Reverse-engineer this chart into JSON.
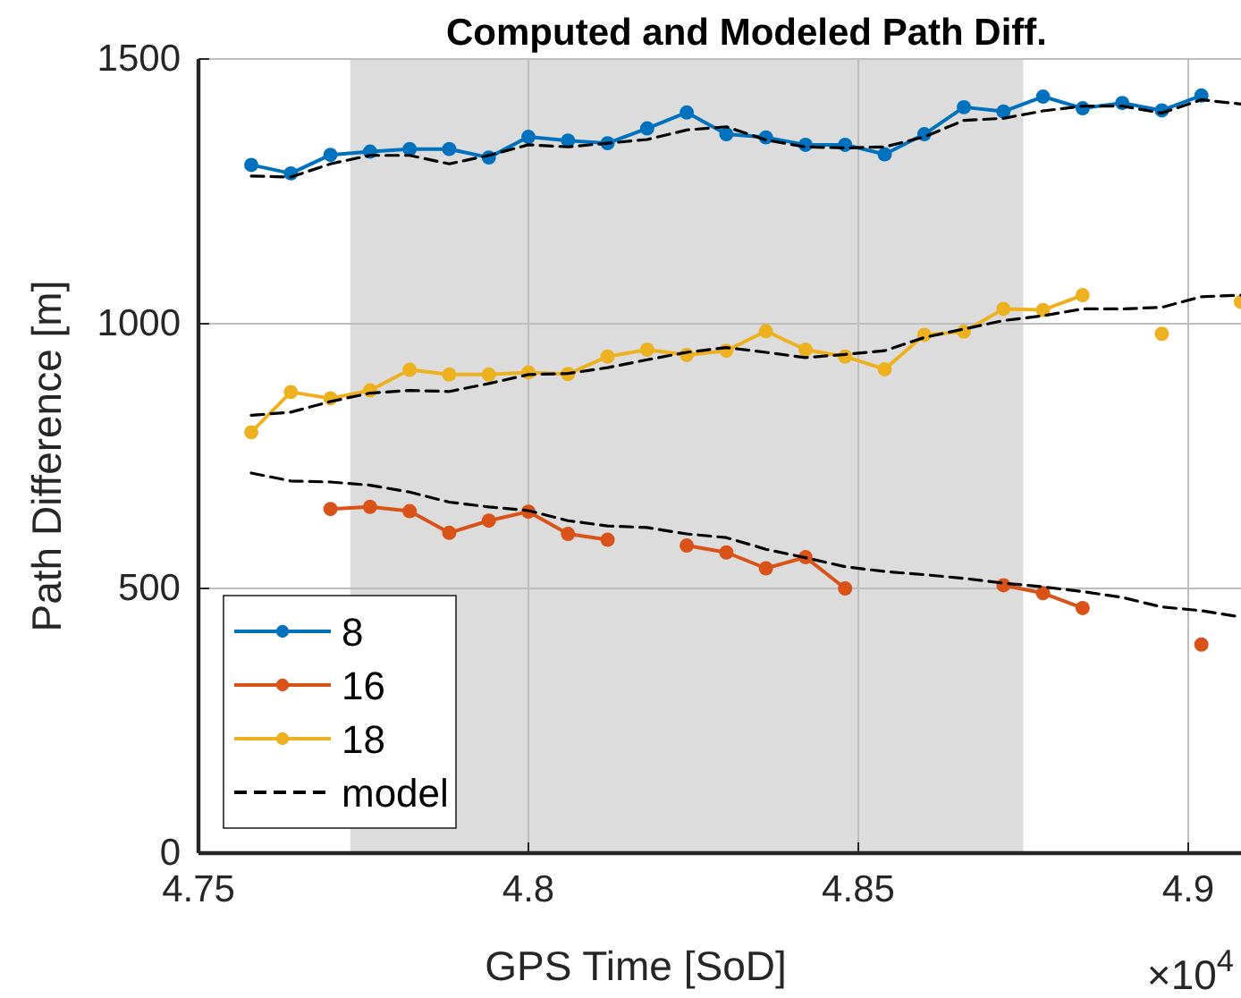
{
  "chart_data": {
    "type": "line",
    "title": "Computed and Modeled Path Diff.",
    "xlabel": "GPS Time [SoD]",
    "ylabel": "Path Difference [m]",
    "x": [
      4.758,
      4.764,
      4.77,
      4.776,
      4.782,
      4.788,
      4.794,
      4.8,
      4.806,
      4.812,
      4.818,
      4.824,
      4.83,
      4.836,
      4.842,
      4.848,
      4.854,
      4.86,
      4.866,
      4.872,
      4.878,
      4.884,
      4.89,
      4.896,
      4.902,
      4.908
    ],
    "series": [
      {
        "name": "8",
        "color": "#0072bd",
        "values": [
          1300,
          1284,
          1319,
          1325,
          1330,
          1330,
          1314,
          1353,
          1346,
          1341,
          1369,
          1399,
          1358,
          1352,
          1338,
          1338,
          1320,
          1358,
          1409,
          1401,
          1429,
          1407,
          1417,
          1403,
          1431,
          null
        ]
      },
      {
        "name": "16",
        "color": "#d95319",
        "values": [
          null,
          null,
          650,
          654,
          646,
          605,
          628,
          645,
          603,
          592,
          null,
          581,
          568,
          538,
          559,
          500,
          null,
          null,
          null,
          506,
          491,
          463,
          null,
          null,
          394,
          null
        ]
      },
      {
        "name": "18",
        "color": "#edb120",
        "values": [
          795,
          871,
          859,
          874,
          913,
          904,
          904,
          908,
          905,
          938,
          951,
          941,
          949,
          986,
          951,
          938,
          914,
          979,
          985,
          1028,
          1026,
          1054,
          null,
          981,
          null,
          1041
        ]
      },
      {
        "name": "model",
        "color": "#000000",
        "marker": "none",
        "line_style": "dashed",
        "values": [
          1279,
          1277,
          1302,
          1318,
          1318,
          1302,
          1318,
          1338,
          1334,
          1341,
          1348,
          1366,
          1372,
          1347,
          1334,
          1332,
          1334,
          1353,
          1384,
          1388,
          1402,
          1411,
          1411,
          1398,
          1423,
          1415
        ]
      },
      {
        "color": "#000000",
        "marker": "none",
        "line_style": "dashed",
        "values": [
          827,
          833,
          853,
          869,
          874,
          872,
          887,
          904,
          906,
          917,
          932,
          946,
          955,
          946,
          936,
          942,
          949,
          974,
          990,
          1006,
          1015,
          1028,
          1028,
          1031,
          1051,
          1054
        ]
      },
      {
        "color": "#000000",
        "marker": "none",
        "line_style": "dashed",
        "values": [
          718,
          703,
          701,
          695,
          682,
          663,
          654,
          647,
          628,
          618,
          615,
          603,
          596,
          574,
          558,
          541,
          532,
          526,
          519,
          510,
          503,
          494,
          483,
          465,
          458,
          446
        ]
      }
    ],
    "xlim": [
      4.75,
      4.908
    ],
    "xticks": [
      4.75,
      4.8,
      4.85,
      4.9
    ],
    "ylim": [
      0,
      1500
    ],
    "yticks": [
      0,
      500,
      1000,
      1500
    ],
    "bands": [
      {
        "axis": "x",
        "from": 4.773,
        "to": 4.875,
        "color": "#dcdcdc"
      }
    ],
    "annotations": [
      "×10$^{4}$"
    ],
    "grid": true,
    "legend": "bottom left",
    "marker": "circle",
    "line_style": "solid"
  }
}
